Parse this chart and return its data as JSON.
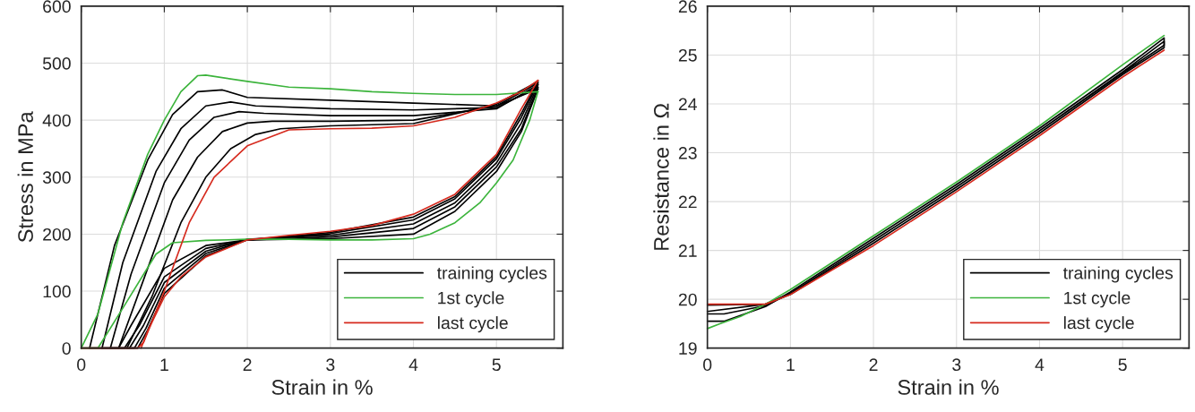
{
  "chart_data": [
    {
      "type": "line",
      "xlabel": "Strain in %",
      "ylabel": "Stress in MPa",
      "xlim": [
        0,
        5.8
      ],
      "ylim": [
        0,
        600
      ],
      "xticks": [
        0,
        1,
        2,
        3,
        4,
        5
      ],
      "yticks": [
        0,
        100,
        200,
        300,
        400,
        500,
        600
      ],
      "grid": true,
      "legend": "bottom right",
      "series": [
        {
          "name": "training cycles",
          "color": "#000000",
          "x": [
            0.1,
            0.4,
            0.8,
            1.1,
            1.4,
            1.7,
            2.0,
            3.0,
            4.0,
            5.0,
            5.5
          ],
          "values": [
            0,
            180,
            330,
            410,
            450,
            453,
            440,
            435,
            430,
            425,
            455
          ]
        },
        {
          "color": "#000000",
          "x": [
            0.1,
            0.45,
            0.6,
            1.0,
            1.5,
            2.0,
            3.0,
            4.0,
            4.5,
            5.0,
            5.3,
            5.5
          ],
          "values": [
            0,
            0,
            40,
            140,
            180,
            190,
            192,
            200,
            240,
            310,
            380,
            455
          ]
        },
        {
          "color": "#000000",
          "x": [
            0.25,
            0.5,
            0.9,
            1.2,
            1.5,
            1.8,
            2.1,
            3.0,
            4.0,
            5.0,
            5.5
          ],
          "values": [
            0,
            150,
            310,
            385,
            425,
            432,
            425,
            420,
            418,
            422,
            458
          ]
        },
        {
          "color": "#000000",
          "x": [
            0.25,
            0.52,
            0.7,
            1.0,
            1.5,
            2.0,
            3.0,
            4.0,
            4.5,
            5.0,
            5.3,
            5.5
          ],
          "values": [
            0,
            0,
            40,
            125,
            175,
            190,
            195,
            210,
            248,
            318,
            385,
            458
          ]
        },
        {
          "color": "#000000",
          "x": [
            0.35,
            0.6,
            1.0,
            1.3,
            1.6,
            1.9,
            2.2,
            3.0,
            4.0,
            5.0,
            5.5
          ],
          "values": [
            0,
            130,
            290,
            365,
            405,
            415,
            412,
            408,
            408,
            420,
            462
          ]
        },
        {
          "color": "#000000",
          "x": [
            0.35,
            0.58,
            0.75,
            1.0,
            1.5,
            2.0,
            3.0,
            4.0,
            4.5,
            5.0,
            5.3,
            5.5
          ],
          "values": [
            0,
            0,
            40,
            115,
            170,
            191,
            198,
            218,
            255,
            325,
            395,
            462
          ]
        },
        {
          "color": "#000000",
          "x": [
            0.45,
            0.75,
            1.1,
            1.4,
            1.7,
            2.0,
            2.3,
            3.0,
            4.0,
            5.0,
            5.5
          ],
          "values": [
            0,
            120,
            260,
            335,
            380,
            395,
            398,
            398,
            400,
            425,
            465
          ]
        },
        {
          "color": "#000000",
          "x": [
            0.45,
            0.64,
            0.78,
            1.0,
            1.5,
            2.0,
            3.0,
            4.0,
            4.5,
            5.0,
            5.3,
            5.5
          ],
          "values": [
            0,
            0,
            35,
            105,
            166,
            190,
            201,
            225,
            262,
            332,
            405,
            465
          ]
        },
        {
          "color": "#000000",
          "x": [
            0.55,
            0.85,
            1.2,
            1.5,
            1.8,
            2.1,
            2.4,
            3.0,
            4.0,
            5.0,
            5.5
          ],
          "values": [
            0,
            90,
            220,
            300,
            350,
            375,
            385,
            390,
            394,
            428,
            468
          ]
        },
        {
          "color": "#000000",
          "x": [
            0.55,
            0.68,
            0.8,
            1.0,
            1.5,
            2.0,
            3.0,
            4.0,
            4.5,
            5.0,
            5.3,
            5.5
          ],
          "values": [
            0,
            0,
            32,
            96,
            162,
            190,
            203,
            230,
            266,
            336,
            412,
            468
          ]
        },
        {
          "name": "1st cycle",
          "color": "#3cb43c",
          "x": [
            0,
            0.2,
            0.5,
            0.8,
            1.0,
            1.2,
            1.4,
            1.5,
            2.0,
            2.5,
            3.0,
            3.5,
            4.0,
            4.5,
            5.0,
            5.5
          ],
          "values": [
            0,
            60,
            220,
            340,
            400,
            450,
            478,
            479,
            468,
            458,
            455,
            450,
            447,
            445,
            445,
            450
          ]
        },
        {
          "color": "#3cb43c",
          "x": [
            0,
            0.2,
            0.5,
            0.9,
            1.1,
            1.5,
            2.0,
            2.5,
            3.0,
            3.5,
            4.0,
            4.2,
            4.5,
            4.8,
            5.0,
            5.2,
            5.4,
            5.5
          ],
          "values": [
            0,
            0,
            70,
            165,
            185,
            189,
            191,
            191,
            190,
            190,
            192,
            200,
            220,
            255,
            290,
            330,
            400,
            450
          ]
        },
        {
          "name": "last cycle",
          "color": "#d62a1e",
          "x": [
            0,
            0.68,
            0.75,
            1.0,
            1.3,
            1.6,
            2.0,
            2.5,
            3.0,
            3.5,
            4.0,
            4.5,
            5.0,
            5.3,
            5.5
          ],
          "values": [
            0,
            0,
            10,
            100,
            220,
            300,
            355,
            383,
            385,
            386,
            390,
            405,
            430,
            450,
            470
          ]
        },
        {
          "color": "#d62a1e",
          "x": [
            0.72,
            0.8,
            1.0,
            1.2,
            1.5,
            2.0,
            2.5,
            3.0,
            3.5,
            4.0,
            4.5,
            5.0,
            5.3,
            5.5
          ],
          "values": [
            0,
            30,
            90,
            125,
            160,
            190,
            198,
            205,
            215,
            235,
            270,
            340,
            420,
            470
          ]
        }
      ]
    },
    {
      "type": "line",
      "xlabel": "Strain in %",
      "ylabel": "Resistance in Ω",
      "xlim": [
        0,
        5.8
      ],
      "ylim": [
        19,
        26
      ],
      "xticks": [
        0,
        1,
        2,
        3,
        4,
        5
      ],
      "yticks": [
        19,
        20,
        21,
        22,
        23,
        24,
        25,
        26
      ],
      "grid": true,
      "legend": "bottom right",
      "series": [
        {
          "name": "training cycles",
          "color": "#000000",
          "x": [
            0,
            0.2,
            0.7,
            1.0,
            2.0,
            3.0,
            4.0,
            5.0,
            5.5,
            5.5,
            5.0,
            4.0,
            3.0,
            2.0,
            1.0,
            0.7,
            0
          ],
          "values": [
            19.55,
            19.55,
            19.85,
            20.15,
            21.25,
            22.35,
            23.5,
            24.7,
            25.35,
            25.15,
            24.6,
            23.4,
            22.25,
            21.15,
            20.1,
            19.9,
            19.88
          ]
        },
        {
          "color": "#000000",
          "x": [
            0,
            0.2,
            0.7,
            1.0,
            2.0,
            3.0,
            4.0,
            5.0,
            5.5,
            5.5,
            5.0,
            4.0,
            3.0,
            2.0,
            1.0,
            0.7,
            0
          ],
          "values": [
            19.7,
            19.7,
            19.87,
            20.12,
            21.2,
            22.3,
            23.45,
            24.65,
            25.28,
            25.2,
            24.63,
            23.45,
            22.3,
            21.2,
            20.12,
            19.9,
            19.75
          ]
        },
        {
          "name": "1st cycle",
          "color": "#3cb43c",
          "x": [
            0,
            0.15,
            0.4,
            0.7,
            1.0,
            2.0,
            3.0,
            4.0,
            5.0,
            5.5
          ],
          "values": [
            19.4,
            19.5,
            19.65,
            19.9,
            20.2,
            21.3,
            22.4,
            23.55,
            24.8,
            25.4
          ]
        },
        {
          "name": "last cycle",
          "color": "#d62a1e",
          "x": [
            0,
            0.7,
            1.0,
            2.0,
            3.0,
            4.0,
            5.0,
            5.5
          ],
          "values": [
            19.9,
            19.9,
            20.1,
            21.1,
            22.2,
            23.35,
            24.55,
            25.1
          ]
        }
      ]
    }
  ]
}
